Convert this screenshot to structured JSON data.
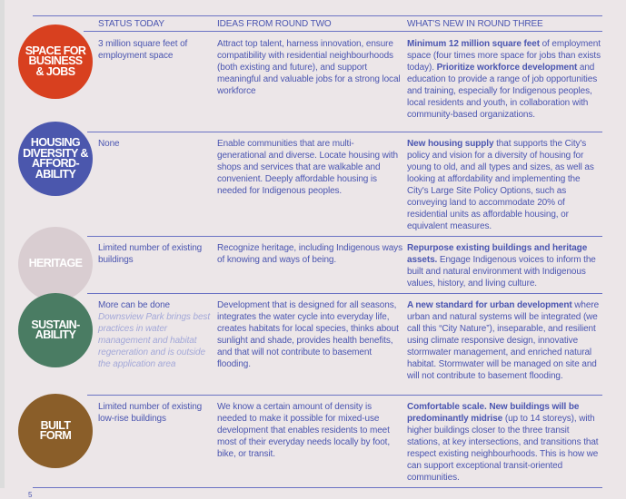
{
  "headers": {
    "status": "STATUS TODAY",
    "ideas": "IDEAS FROM ROUND TWO",
    "new": "WHAT'S NEW IN ROUND THREE"
  },
  "colors": {
    "text": "#4a55b0",
    "rule": "#6b73c4",
    "background": "#ece6e8"
  },
  "rows": [
    {
      "label": "SPACE FOR\nBUSINESS\n& JOBS",
      "color": "#d8401f",
      "status": "3 million square feet of employment space",
      "status_note": "",
      "ideas": "Attract top talent, harness innovation, ensure compatibility with residential neighbourhoods (both existing and future), and support meaningful and valuable jobs for a strong local workforce",
      "new": [
        {
          "text": "Minimum 12 million square feet",
          "bold": true
        },
        {
          "text": " of employment space (four times more space for jobs than exists today). ",
          "bold": false
        },
        {
          "text": "Prioritize workforce development",
          "bold": true
        },
        {
          "text": " and education to provide a range of job opportunities and training, especially for Indigenous peoples, local residents and youth, in collaboration with community-based organizations.",
          "bold": false
        }
      ]
    },
    {
      "label": "HOUSING\nDIVERSITY &\nAFFORD-\nABILITY",
      "color": "#4b57ad",
      "status": "None",
      "status_note": "",
      "ideas": "Enable communities that are multi-generational and diverse. Locate housing with shops and services that are walkable and convenient. Deeply affordable housing is needed for Indigenous peoples.",
      "new": [
        {
          "text": "New housing supply",
          "bold": true
        },
        {
          "text": " that supports the City's policy and vision for a diversity of housing for young to old, and all types and sizes, as well as looking at affordability and implementing the City's Large Site Policy Options, such as conveying land to accommodate 20% of residential units as affordable housing, or equivalent measures.",
          "bold": false
        }
      ]
    },
    {
      "label": "HERITAGE",
      "color": "#d9cdd1",
      "status": "Limited number of existing buildings",
      "status_note": "",
      "ideas": "Recognize heritage, including Indigenous ways of knowing and ways of being.",
      "new": [
        {
          "text": "Repurpose existing buildings and heritage assets.",
          "bold": true
        },
        {
          "text": " Engage Indigenous voices to inform the built and natural environment with Indigenous values, history, and living culture.",
          "bold": false
        }
      ]
    },
    {
      "label": "SUSTAIN-\nABILITY",
      "color": "#4a7c63",
      "status": "More can be done",
      "status_note": "Downsview Park brings best practices in water management and habitat regeneration and is outside the application area",
      "ideas": "Development that is designed for all seasons, integrates the water cycle into everyday life, creates habitats for local species, thinks about sunlight and shade, provides health benefits, and that will not contribute to basement flooding.",
      "new": [
        {
          "text": "A new standard for urban development",
          "bold": true
        },
        {
          "text": " where urban and natural systems will be integrated (we call this “City Nature”), inseparable, and resilient using climate responsive design, innovative stormwater management, and enriched natural habitat. Stormwater will be managed on site and will not contribute to basement flooding.",
          "bold": false
        }
      ]
    },
    {
      "label": "BUILT\nFORM",
      "color": "#8a5e29",
      "status": "Limited number of existing low-rise buildings",
      "status_note": "",
      "ideas": "We know a certain amount of density is needed to make it possible for mixed-use development that enables residents to meet most of their everyday needs locally by foot, bike, or transit.",
      "new": [
        {
          "text": "Comfortable scale. New buildings will be predominantly midrise",
          "bold": true
        },
        {
          "text": "  (up to 14 storeys), with higher buildings closer to the three transit stations, at key intersections, and transitions that respect existing neighbourhoods. This is how we can support exceptional transit-oriented communities.",
          "bold": false
        }
      ]
    }
  ],
  "page_number": "5"
}
